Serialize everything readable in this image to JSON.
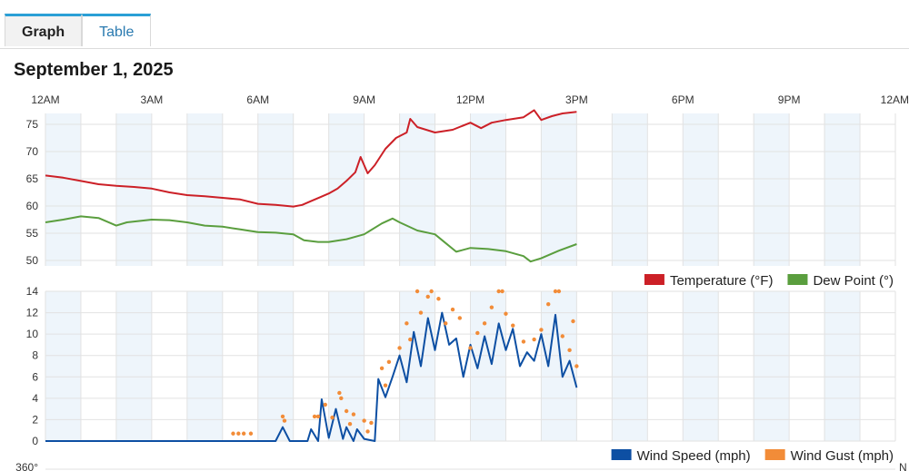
{
  "tabs": [
    {
      "label": "Graph",
      "active": true
    },
    {
      "label": "Table",
      "active": false
    }
  ],
  "date_title": "September 1, 2025",
  "time_ticks": [
    "12AM",
    "3AM",
    "6AM",
    "9AM",
    "12PM",
    "3PM",
    "6PM",
    "9PM",
    "12AM"
  ],
  "bottom_labels": {
    "left": "360°",
    "right": "N"
  },
  "colors": {
    "temperature": "#cc2027",
    "dew_point": "#5a9e3e",
    "wind_speed": "#0d4fa3",
    "wind_gust": "#f28c38",
    "band": "#eef5fb",
    "grid": "#e2e2e2"
  },
  "chart_data": [
    {
      "type": "line",
      "x_unit": "hour of day",
      "xlim": [
        0,
        24
      ],
      "ylim": [
        49,
        77
      ],
      "yticks": [
        50,
        55,
        60,
        65,
        70,
        75
      ],
      "grid": true,
      "legend_position": "bottom-right",
      "series": [
        {
          "name": "Temperature (°F)",
          "color": "#cc2027",
          "points": [
            [
              0,
              65.6
            ],
            [
              0.5,
              65.2
            ],
            [
              1,
              64.6
            ],
            [
              1.5,
              64
            ],
            [
              2,
              63.7
            ],
            [
              2.5,
              63.5
            ],
            [
              3,
              63.2
            ],
            [
              3.5,
              62.5
            ],
            [
              4,
              62
            ],
            [
              4.5,
              61.8
            ],
            [
              5,
              61.5
            ],
            [
              5.5,
              61.2
            ],
            [
              6,
              60.4
            ],
            [
              6.5,
              60.2
            ],
            [
              7,
              59.9
            ],
            [
              7.25,
              60.2
            ],
            [
              7.5,
              60.9
            ],
            [
              7.75,
              61.6
            ],
            [
              8,
              62.3
            ],
            [
              8.25,
              63.2
            ],
            [
              8.5,
              64.6
            ],
            [
              8.75,
              66.2
            ],
            [
              8.9,
              69
            ],
            [
              9.1,
              66
            ],
            [
              9.3,
              67.5
            ],
            [
              9.6,
              70.5
            ],
            [
              9.9,
              72.5
            ],
            [
              10.2,
              73.5
            ],
            [
              10.3,
              76
            ],
            [
              10.5,
              74.5
            ],
            [
              11,
              73.5
            ],
            [
              11.5,
              74
            ],
            [
              12,
              75.3
            ],
            [
              12.3,
              74.3
            ],
            [
              12.6,
              75.3
            ],
            [
              13,
              75.8
            ],
            [
              13.5,
              76.3
            ],
            [
              13.8,
              77.6
            ],
            [
              14,
              75.8
            ],
            [
              14.3,
              76.5
            ],
            [
              14.6,
              77
            ],
            [
              15,
              77.3
            ]
          ]
        },
        {
          "name": "Dew Point (°)",
          "color": "#5a9e3e",
          "points": [
            [
              0,
              57
            ],
            [
              0.5,
              57.5
            ],
            [
              1,
              58.1
            ],
            [
              1.5,
              57.8
            ],
            [
              2,
              56.4
            ],
            [
              2.3,
              57
            ],
            [
              3,
              57.5
            ],
            [
              3.5,
              57.4
            ],
            [
              4,
              57
            ],
            [
              4.5,
              56.4
            ],
            [
              5,
              56.2
            ],
            [
              5.5,
              55.7
            ],
            [
              6,
              55.2
            ],
            [
              6.5,
              55.1
            ],
            [
              7,
              54.8
            ],
            [
              7.3,
              53.7
            ],
            [
              7.7,
              53.4
            ],
            [
              8,
              53.4
            ],
            [
              8.5,
              53.9
            ],
            [
              9,
              54.8
            ],
            [
              9.5,
              56.8
            ],
            [
              9.8,
              57.7
            ],
            [
              10,
              57
            ],
            [
              10.5,
              55.5
            ],
            [
              11,
              54.8
            ],
            [
              11.3,
              53.2
            ],
            [
              11.6,
              51.6
            ],
            [
              12,
              52.3
            ],
            [
              12.5,
              52.1
            ],
            [
              13,
              51.7
            ],
            [
              13.5,
              50.8
            ],
            [
              13.7,
              49.8
            ],
            [
              14,
              50.4
            ],
            [
              14.5,
              51.8
            ],
            [
              15,
              53
            ]
          ]
        }
      ]
    },
    {
      "type": "line",
      "x_unit": "hour of day",
      "xlim": [
        0,
        24
      ],
      "ylim": [
        0,
        14
      ],
      "yticks": [
        0,
        2,
        4,
        6,
        8,
        10,
        12,
        14
      ],
      "grid": true,
      "legend_position": "bottom-right",
      "series": [
        {
          "name": "Wind Speed (mph)",
          "color": "#0d4fa3",
          "mode": "line",
          "points": [
            [
              0,
              0
            ],
            [
              6.5,
              0
            ],
            [
              6.7,
              1.3
            ],
            [
              6.9,
              0
            ],
            [
              7.4,
              0
            ],
            [
              7.5,
              1.1
            ],
            [
              7.7,
              0
            ],
            [
              7.8,
              3.9
            ],
            [
              8,
              0.3
            ],
            [
              8.2,
              3
            ],
            [
              8.4,
              0.2
            ],
            [
              8.5,
              1.3
            ],
            [
              8.7,
              0
            ],
            [
              8.8,
              1.1
            ],
            [
              9,
              0.2
            ],
            [
              9.3,
              0
            ],
            [
              9.4,
              5.8
            ],
            [
              9.6,
              4.1
            ],
            [
              9.8,
              6
            ],
            [
              10,
              8
            ],
            [
              10.2,
              5.5
            ],
            [
              10.4,
              10.2
            ],
            [
              10.6,
              7
            ],
            [
              10.8,
              11.5
            ],
            [
              11,
              8.5
            ],
            [
              11.2,
              12
            ],
            [
              11.4,
              9
            ],
            [
              11.6,
              9.6
            ],
            [
              11.8,
              6
            ],
            [
              12,
              9
            ],
            [
              12.2,
              6.8
            ],
            [
              12.4,
              9.8
            ],
            [
              12.6,
              7.2
            ],
            [
              12.8,
              11
            ],
            [
              13,
              8.5
            ],
            [
              13.2,
              10.5
            ],
            [
              13.4,
              7
            ],
            [
              13.6,
              8.3
            ],
            [
              13.8,
              7.5
            ],
            [
              14,
              10
            ],
            [
              14.2,
              7
            ],
            [
              14.4,
              11.8
            ],
            [
              14.6,
              6
            ],
            [
              14.8,
              7.5
            ],
            [
              15,
              5
            ]
          ]
        },
        {
          "name": "Wind Gust (mph)",
          "color": "#f28c38",
          "mode": "scatter",
          "points": [
            [
              5.3,
              0.7
            ],
            [
              5.45,
              0.7
            ],
            [
              5.6,
              0.7
            ],
            [
              5.8,
              0.7
            ],
            [
              6.7,
              2.3
            ],
            [
              6.75,
              1.9
            ],
            [
              7.6,
              2.3
            ],
            [
              7.7,
              2.3
            ],
            [
              7.9,
              3.4
            ],
            [
              8.1,
              2.2
            ],
            [
              8.3,
              4.5
            ],
            [
              8.35,
              4
            ],
            [
              8.5,
              2.8
            ],
            [
              8.7,
              2.5
            ],
            [
              8.6,
              1.6
            ],
            [
              9,
              1.9
            ],
            [
              9.2,
              1.7
            ],
            [
              9.1,
              0.9
            ],
            [
              9.5,
              6.8
            ],
            [
              9.6,
              5.2
            ],
            [
              9.7,
              7.4
            ],
            [
              10,
              8.7
            ],
            [
              10.2,
              11
            ],
            [
              10.3,
              9.5
            ],
            [
              10.5,
              14
            ],
            [
              10.6,
              12
            ],
            [
              10.8,
              13.5
            ],
            [
              10.9,
              14
            ],
            [
              11.1,
              13.3
            ],
            [
              11.3,
              11
            ],
            [
              11.5,
              12.3
            ],
            [
              11.7,
              11.5
            ],
            [
              12,
              8.7
            ],
            [
              12.2,
              10.1
            ],
            [
              12.4,
              11
            ],
            [
              12.6,
              12.5
            ],
            [
              12.8,
              14
            ],
            [
              12.9,
              14
            ],
            [
              13,
              11.9
            ],
            [
              13.2,
              10.8
            ],
            [
              13.5,
              9.3
            ],
            [
              13.8,
              9.5
            ],
            [
              14,
              10.4
            ],
            [
              14.2,
              12.8
            ],
            [
              14.4,
              14
            ],
            [
              14.5,
              14
            ],
            [
              14.6,
              9.8
            ],
            [
              14.8,
              8.5
            ],
            [
              14.9,
              11.2
            ],
            [
              15,
              7
            ]
          ]
        }
      ]
    }
  ]
}
